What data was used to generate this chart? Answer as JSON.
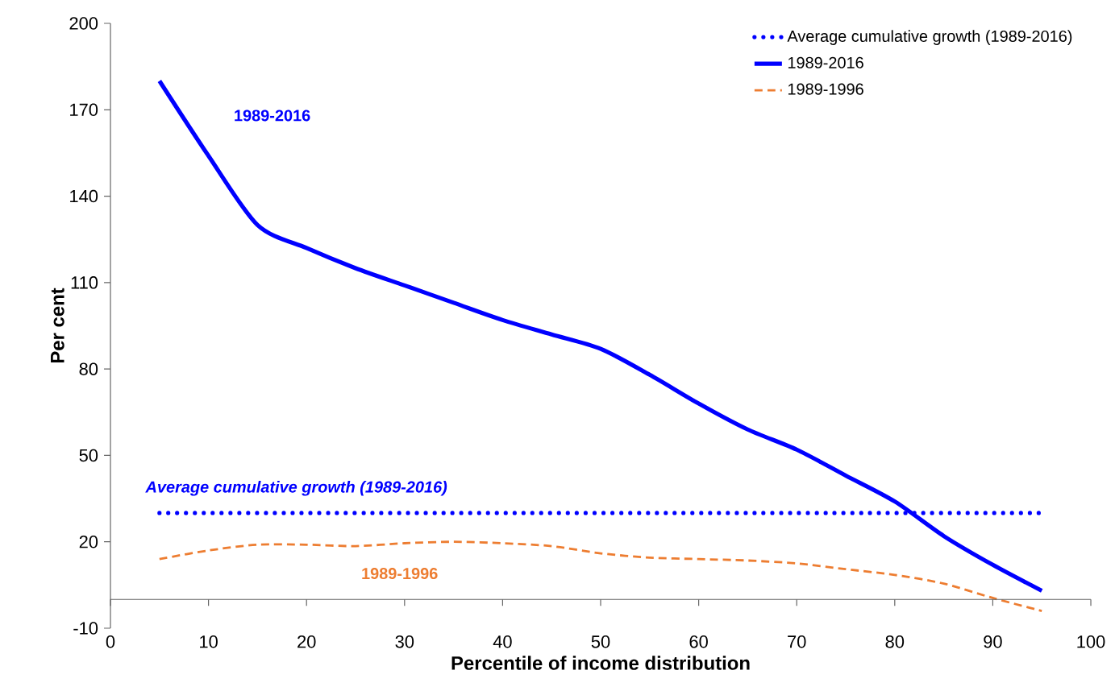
{
  "chart_data": {
    "type": "line",
    "xlabel": "Percentile of income distribution",
    "ylabel": "Per cent",
    "xlim": [
      0,
      100
    ],
    "xticks": [
      0,
      10,
      20,
      30,
      40,
      50,
      60,
      70,
      80,
      90,
      100
    ],
    "ylim": [
      -10,
      200
    ],
    "yticks": [
      -10,
      20,
      50,
      80,
      110,
      140,
      170,
      200
    ],
    "grid": false,
    "legend": "top right",
    "marker": "none",
    "series": [
      {
        "name": "Average cumulative growth (1989-2016)",
        "color": "#0000ff",
        "line_style": "dotted",
        "x": [
          5,
          95
        ],
        "values": [
          30,
          30
        ]
      },
      {
        "name": "1989-2016",
        "color": "#0000ff",
        "line_style": "solid",
        "x": [
          5,
          10,
          15,
          20,
          25,
          30,
          35,
          40,
          45,
          50,
          55,
          60,
          65,
          70,
          75,
          80,
          85,
          90,
          95
        ],
        "values": [
          180,
          154,
          130,
          122,
          115,
          109,
          103,
          97,
          92,
          87,
          78,
          68,
          59,
          52,
          43,
          34,
          22,
          12,
          3
        ]
      },
      {
        "name": "1989-1996",
        "color": "#ed7d31",
        "line_style": "dashed",
        "x": [
          5,
          10,
          15,
          20,
          25,
          30,
          35,
          40,
          45,
          50,
          55,
          60,
          65,
          70,
          75,
          80,
          85,
          90,
          95
        ],
        "values": [
          14,
          17,
          19,
          19,
          18.5,
          19.5,
          20,
          19.5,
          18.5,
          16,
          14.5,
          14,
          13.5,
          12.5,
          10.5,
          8.5,
          5.5,
          0.5,
          -4
        ]
      }
    ],
    "annotations": [
      "1989-2016",
      "Average cumulative  growth (1989-2016)",
      "1989-1996"
    ]
  }
}
